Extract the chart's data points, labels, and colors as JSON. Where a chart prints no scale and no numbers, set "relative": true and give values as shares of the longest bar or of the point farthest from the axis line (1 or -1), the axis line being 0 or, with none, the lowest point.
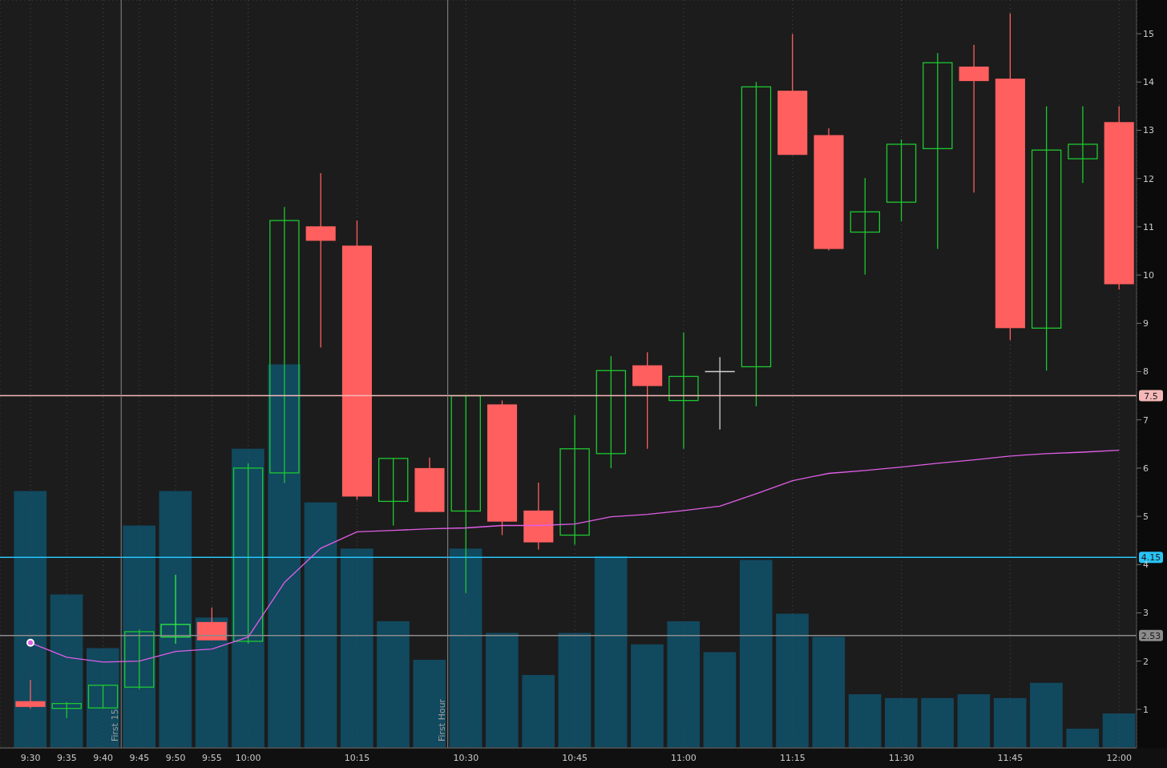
{
  "chart_data": [
    {
      "type": "candlestick",
      "x": [
        9.5,
        9.5833,
        9.6667,
        9.75,
        9.8333,
        9.9167,
        10,
        10.0833,
        10.1667,
        10.25,
        10.3333,
        10.4167,
        10.5,
        10.5833,
        10.6667,
        10.75,
        10.8333,
        10.9167,
        11,
        11.0833,
        11.1667,
        11.25,
        11.3333,
        11.4167,
        11.5,
        11.5833,
        11.6667,
        11.75,
        11.8333,
        11.9167,
        12
      ],
      "ohlc": [
        [
          1.17,
          1.61,
          1.02,
          1.05
        ],
        [
          1.02,
          1.15,
          0.82,
          1.12
        ],
        [
          1.03,
          1.5,
          1.03,
          1.5
        ],
        [
          1.46,
          2.65,
          1.42,
          2.61
        ],
        [
          2.5,
          3.79,
          2.36,
          2.76
        ],
        [
          2.81,
          3.11,
          2.43,
          2.43
        ],
        [
          2.41,
          6.1,
          2.36,
          6.0
        ],
        [
          5.9,
          11.41,
          5.69,
          11.13
        ],
        [
          11.01,
          12.11,
          8.5,
          10.71
        ],
        [
          10.61,
          11.13,
          5.34,
          5.41
        ],
        [
          5.31,
          6.2,
          4.81,
          6.2
        ],
        [
          6.0,
          6.22,
          5.09,
          5.09
        ],
        [
          5.11,
          7.5,
          3.41,
          7.5
        ],
        [
          7.32,
          7.4,
          4.61,
          4.89
        ],
        [
          5.12,
          5.7,
          4.31,
          4.46
        ],
        [
          4.61,
          7.1,
          4.41,
          6.4
        ],
        [
          6.3,
          8.32,
          6.0,
          8.02
        ],
        [
          8.13,
          8.4,
          6.4,
          7.7
        ],
        [
          7.4,
          8.81,
          6.4,
          7.9
        ],
        [
          8.0,
          8.3,
          6.8,
          8.0
        ],
        [
          8.1,
          14.0,
          7.28,
          13.9
        ],
        [
          13.82,
          15.0,
          12.49,
          12.49
        ],
        [
          12.9,
          13.04,
          10.51,
          10.54
        ],
        [
          10.89,
          12.01,
          10.01,
          11.31
        ],
        [
          11.51,
          12.81,
          11.11,
          12.71
        ],
        [
          12.62,
          14.6,
          10.54,
          14.4
        ],
        [
          14.32,
          14.77,
          11.71,
          14.02
        ],
        [
          14.07,
          15.42,
          8.65,
          8.9
        ],
        [
          8.9,
          13.5,
          8.02,
          12.59
        ],
        [
          12.41,
          13.5,
          11.91,
          12.71
        ],
        [
          13.17,
          13.5,
          9.7,
          9.81
        ]
      ],
      "colors": [
        "#ff5f5f",
        "#1ec832",
        "#1ec832",
        "#1ec832",
        "#2cf040",
        "#ff5f5f",
        "#1ec832",
        "#1ec832",
        "#ff5f5f",
        "#ff5f5f",
        "#1ec832",
        "#ff5f5f",
        "#1ec832",
        "#ff5f5f",
        "#ff5f5f",
        "#1ec832",
        "#1ec832",
        "#ff5f5f",
        "#1ec832",
        "#d0d0d0",
        "#1ec832",
        "#ff5f5f",
        "#ff5f5f",
        "#1ec832",
        "#1ec832",
        "#1ec832",
        "#ff5f5f",
        "#ff5f5f",
        "#1ec832",
        "#1ec832",
        "#ff5f5f"
      ],
      "series": [
        {
          "type": "line",
          "color": "#e05ee6",
          "values": [
            2.38,
            2.08,
            1.98,
            2.0,
            2.2,
            2.25,
            2.5,
            3.63,
            4.34,
            4.68,
            4.71,
            4.74,
            4.76,
            4.81,
            4.81,
            4.84,
            4.99,
            5.04,
            5.12,
            5.21,
            5.47,
            5.74,
            5.89,
            5.95,
            6.02,
            6.1,
            6.17,
            6.25,
            6.3,
            6.33,
            6.37
          ]
        }
      ],
      "marker": "none",
      "xlim": [
        9.43,
        12.04
      ],
      "xticks": [
        {
          "value": 9.5,
          "label": "9:30"
        },
        {
          "value": 9.5833,
          "label": "9:35"
        },
        {
          "value": 9.6667,
          "label": "9:40"
        },
        {
          "value": 9.75,
          "label": "9:45"
        },
        {
          "value": 9.8333,
          "label": "9:50"
        },
        {
          "value": 9.9167,
          "label": "9:55"
        },
        {
          "value": 10,
          "label": "10:00"
        },
        {
          "value": 10.25,
          "label": "10:15"
        },
        {
          "value": 10.5,
          "label": "10:30"
        },
        {
          "value": 10.75,
          "label": "10:45"
        },
        {
          "value": 11,
          "label": "11:00"
        },
        {
          "value": 11.25,
          "label": "11:15"
        },
        {
          "value": 11.5,
          "label": "11:30"
        },
        {
          "value": 11.75,
          "label": "11:45"
        },
        {
          "value": 12,
          "label": "12:00"
        }
      ],
      "ylim": [
        0.2,
        15.7
      ],
      "yticks": [
        1,
        2,
        3,
        4,
        5,
        6,
        7,
        8,
        9,
        10,
        11,
        12,
        13,
        14,
        15
      ],
      "grid": true,
      "ref_lines": [
        {
          "axis": "y",
          "value": 7.5,
          "label": "7.5",
          "color": "#f5b8b8"
        },
        {
          "axis": "y",
          "value": 4.15,
          "label": "4.15",
          "color": "#29c4f6"
        },
        {
          "axis": "y",
          "value": 2.53,
          "label": "2.53",
          "color": "#8c8c8c"
        },
        {
          "axis": "x",
          "value": 9.7083,
          "label": "First 15",
          "color": "#8c8c8c"
        },
        {
          "axis": "x",
          "value": 10.4583,
          "label": "First Hour",
          "color": "#8c8c8c"
        }
      ]
    },
    {
      "type": "bar",
      "x": [
        9.5,
        9.5833,
        9.6667,
        9.75,
        9.8333,
        9.9167,
        10,
        10.0833,
        10.1667,
        10.25,
        10.3333,
        10.4167,
        10.5,
        10.5833,
        10.6667,
        10.75,
        10.8333,
        10.9167,
        11,
        11.0833,
        11.1667,
        11.25,
        11.3333,
        11.4167,
        11.5,
        11.5833,
        11.6667,
        11.75,
        11.8333,
        11.9167,
        12
      ],
      "values": [
        0.67,
        0.4,
        0.26,
        0.58,
        0.67,
        0.34,
        0.78,
        1,
        0.64,
        0.52,
        0.33,
        0.23,
        0.52,
        0.3,
        0.19,
        0.3,
        0.5,
        0.27,
        0.33,
        0.25,
        0.49,
        0.35,
        0.29,
        0.14,
        0.13,
        0.13,
        0.14,
        0.13,
        0.17,
        0.05,
        0.09
      ],
      "color": "#11495f",
      "relative": true,
      "xlim": [
        9.43,
        12.04
      ],
      "tick_labels": false
    }
  ]
}
